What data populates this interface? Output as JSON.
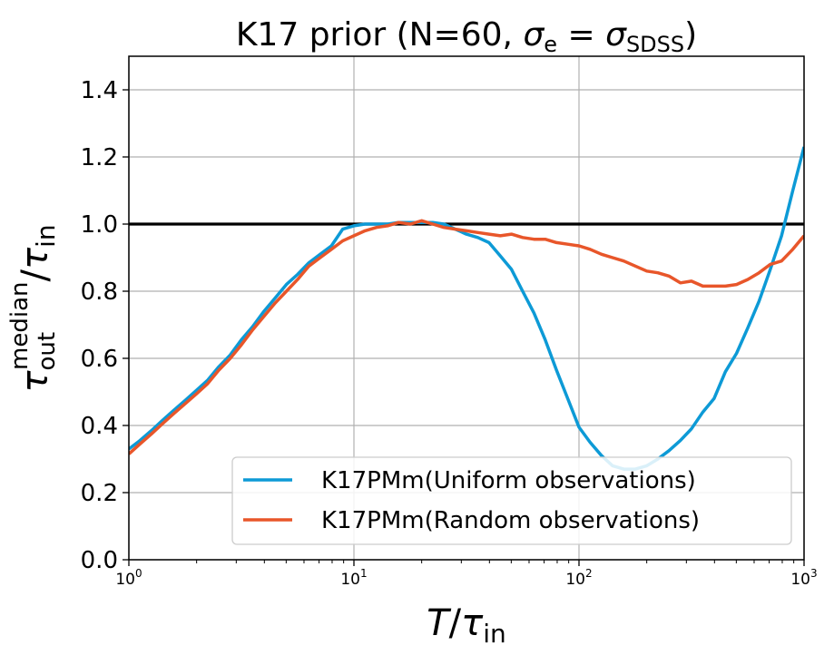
{
  "chart_data": {
    "type": "line",
    "title_parts": {
      "prefix": "K17 prior (N=60, ",
      "sigma": "σ",
      "e_sub": "e",
      "equals": " = ",
      "sigma2": "σ",
      "sdss_sub": "SDSS",
      "suffix": ")"
    },
    "xlabel": {
      "var": "T",
      "slash": "/",
      "tau": "τ",
      "sub": "in"
    },
    "ylabel": {
      "tau": "τ",
      "sub": "out",
      "sup": "median",
      "slash": "/",
      "tau2": "τ",
      "sub2": "in"
    },
    "x_scale": "log",
    "xlim": [
      1,
      1000
    ],
    "ylim": [
      0,
      1.5
    ],
    "x_ticks": [
      {
        "value": 1,
        "base": "10",
        "exp": "0"
      },
      {
        "value": 10,
        "base": "10",
        "exp": "1"
      },
      {
        "value": 100,
        "base": "10",
        "exp": "2"
      },
      {
        "value": 1000,
        "base": "10",
        "exp": "3"
      }
    ],
    "y_ticks": [
      {
        "value": 0.0,
        "label": "0.0"
      },
      {
        "value": 0.2,
        "label": "0.2"
      },
      {
        "value": 0.4,
        "label": "0.4"
      },
      {
        "value": 0.6,
        "label": "0.6"
      },
      {
        "value": 0.8,
        "label": "0.8"
      },
      {
        "value": 1.0,
        "label": "1.0"
      },
      {
        "value": 1.2,
        "label": "1.2"
      },
      {
        "value": 1.4,
        "label": "1.4"
      }
    ],
    "grid": true,
    "legend_position": "lower-right",
    "reference_line": {
      "y": 1.0,
      "color": "#000000"
    },
    "series": [
      {
        "name": "K17PMm(Uniform observations)",
        "color": "#0d9ad6",
        "points": [
          [
            1.0,
            0.33
          ],
          [
            1.12,
            0.355
          ],
          [
            1.26,
            0.385
          ],
          [
            1.41,
            0.415
          ],
          [
            1.58,
            0.445
          ],
          [
            1.78,
            0.475
          ],
          [
            2.0,
            0.505
          ],
          [
            2.24,
            0.535
          ],
          [
            2.51,
            0.575
          ],
          [
            2.82,
            0.61
          ],
          [
            3.16,
            0.655
          ],
          [
            3.55,
            0.695
          ],
          [
            3.98,
            0.74
          ],
          [
            4.47,
            0.78
          ],
          [
            5.01,
            0.82
          ],
          [
            5.62,
            0.85
          ],
          [
            6.31,
            0.885
          ],
          [
            7.08,
            0.91
          ],
          [
            7.94,
            0.935
          ],
          [
            8.91,
            0.985
          ],
          [
            10.0,
            0.995
          ],
          [
            11.2,
            1.0
          ],
          [
            12.6,
            1.0
          ],
          [
            14.1,
            1.0
          ],
          [
            15.8,
            1.005
          ],
          [
            17.8,
            1.005
          ],
          [
            20.0,
            1.005
          ],
          [
            22.4,
            1.005
          ],
          [
            25.1,
            1.0
          ],
          [
            28.2,
            0.985
          ],
          [
            31.6,
            0.97
          ],
          [
            35.5,
            0.96
          ],
          [
            39.8,
            0.945
          ],
          [
            44.7,
            0.905
          ],
          [
            50.1,
            0.865
          ],
          [
            56.2,
            0.8
          ],
          [
            63.1,
            0.735
          ],
          [
            70.8,
            0.655
          ],
          [
            79.4,
            0.565
          ],
          [
            89.1,
            0.48
          ],
          [
            100.0,
            0.395
          ],
          [
            112,
            0.35
          ],
          [
            126,
            0.31
          ],
          [
            141,
            0.28
          ],
          [
            158,
            0.27
          ],
          [
            178,
            0.27
          ],
          [
            200,
            0.28
          ],
          [
            224,
            0.3
          ],
          [
            251,
            0.325
          ],
          [
            282,
            0.355
          ],
          [
            316,
            0.39
          ],
          [
            355,
            0.44
          ],
          [
            398,
            0.48
          ],
          [
            447,
            0.56
          ],
          [
            501,
            0.615
          ],
          [
            562,
            0.69
          ],
          [
            631,
            0.77
          ],
          [
            708,
            0.865
          ],
          [
            794,
            0.965
          ],
          [
            891,
            1.1
          ],
          [
            1000,
            1.23
          ]
        ]
      },
      {
        "name": "K17PMm(Random observations)",
        "color": "#e8562a",
        "points": [
          [
            1.0,
            0.315
          ],
          [
            1.12,
            0.345
          ],
          [
            1.26,
            0.375
          ],
          [
            1.41,
            0.405
          ],
          [
            1.58,
            0.435
          ],
          [
            1.78,
            0.465
          ],
          [
            2.0,
            0.495
          ],
          [
            2.24,
            0.525
          ],
          [
            2.51,
            0.565
          ],
          [
            2.82,
            0.6
          ],
          [
            3.16,
            0.64
          ],
          [
            3.55,
            0.685
          ],
          [
            3.98,
            0.725
          ],
          [
            4.47,
            0.765
          ],
          [
            5.01,
            0.8
          ],
          [
            5.62,
            0.835
          ],
          [
            6.31,
            0.875
          ],
          [
            7.08,
            0.9
          ],
          [
            7.94,
            0.925
          ],
          [
            8.91,
            0.95
          ],
          [
            10.0,
            0.965
          ],
          [
            11.2,
            0.98
          ],
          [
            12.6,
            0.99
          ],
          [
            14.1,
            0.995
          ],
          [
            15.8,
            1.005
          ],
          [
            17.8,
            1.0
          ],
          [
            20.0,
            1.01
          ],
          [
            22.4,
            1.0
          ],
          [
            25.1,
            0.99
          ],
          [
            28.2,
            0.985
          ],
          [
            31.6,
            0.98
          ],
          [
            35.5,
            0.975
          ],
          [
            39.8,
            0.97
          ],
          [
            44.7,
            0.965
          ],
          [
            50.1,
            0.97
          ],
          [
            56.2,
            0.96
          ],
          [
            63.1,
            0.955
          ],
          [
            70.8,
            0.955
          ],
          [
            79.4,
            0.945
          ],
          [
            89.1,
            0.94
          ],
          [
            100.0,
            0.935
          ],
          [
            112,
            0.925
          ],
          [
            126,
            0.91
          ],
          [
            141,
            0.9
          ],
          [
            158,
            0.89
          ],
          [
            178,
            0.875
          ],
          [
            200,
            0.86
          ],
          [
            224,
            0.855
          ],
          [
            251,
            0.845
          ],
          [
            282,
            0.825
          ],
          [
            316,
            0.83
          ],
          [
            355,
            0.815
          ],
          [
            398,
            0.815
          ],
          [
            447,
            0.815
          ],
          [
            501,
            0.82
          ],
          [
            562,
            0.835
          ],
          [
            631,
            0.855
          ],
          [
            708,
            0.88
          ],
          [
            794,
            0.89
          ],
          [
            891,
            0.925
          ],
          [
            1000,
            0.965
          ]
        ]
      }
    ]
  }
}
